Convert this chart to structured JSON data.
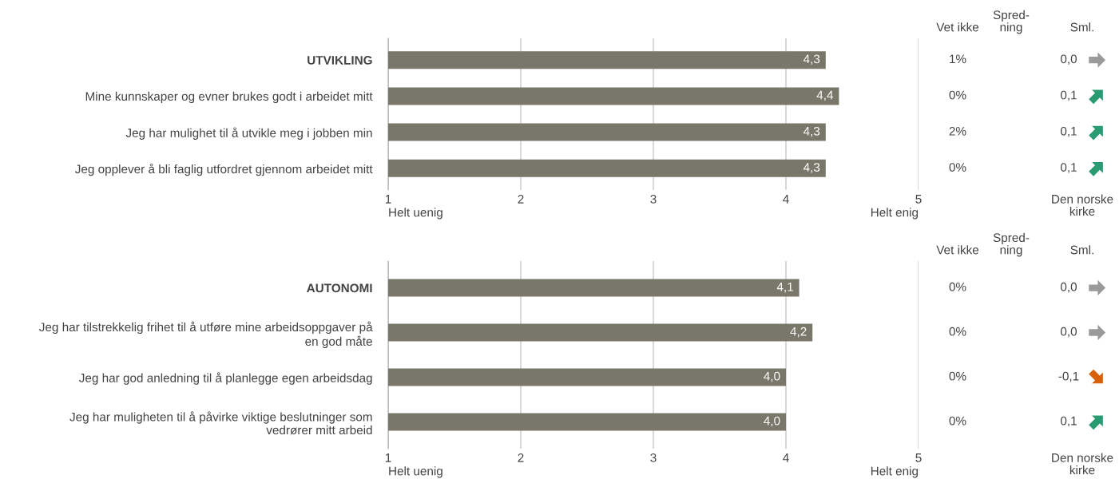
{
  "chart_data": [
    {
      "type": "bar",
      "orientation": "horizontal",
      "categories": [
        "UTVIKLING",
        "Mine kunnskaper og evner brukes godt i arbeidet mitt",
        "Jeg har mulighet til å utvikle meg i jobben min",
        "Jeg opplever å bli faglig utfordret gjennom arbeidet mitt"
      ],
      "values": [
        4.3,
        4.4,
        4.3,
        4.3
      ],
      "value_labels": [
        "4,3",
        "4,4",
        "4,3",
        "4,3"
      ],
      "color": "#78776a",
      "xlim": [
        1,
        5
      ],
      "xticks": [
        1,
        2,
        3,
        4,
        5
      ],
      "grid": "x",
      "annotations": [
        "Vet ikke",
        "Spred-\nning",
        "Sml.",
        "1%",
        "0,0",
        "0%",
        "0,1",
        "2%",
        "0,1",
        "0%",
        "0,1",
        "Helt uenig",
        "Helt enig",
        "Den norske\nkirke"
      ]
    },
    {
      "type": "bar",
      "orientation": "horizontal",
      "categories": [
        "AUTONOMI",
        "Jeg har tilstrekkelig frihet til å utføre mine arbeidsoppgaver på\nen god måte",
        "Jeg har god anledning til å planlegge egen arbeidsdag",
        "Jeg har muligheten til å påvirke viktige beslutninger som\nvedrører mitt arbeid"
      ],
      "values": [
        4.1,
        4.2,
        4.0,
        4.0
      ],
      "value_labels": [
        "4,1",
        "4,2",
        "4,0",
        "4,0"
      ],
      "color": "#78776a",
      "xlim": [
        1,
        5
      ],
      "xticks": [
        1,
        2,
        3,
        4,
        5
      ],
      "grid": "x",
      "annotations": [
        "Vet ikke",
        "Spred-\nning",
        "Sml.",
        "0%",
        "0,0",
        "0%",
        "0,0",
        "0%",
        "-0,1",
        "0%",
        "0,1",
        "Helt uenig",
        "Helt enig",
        "Den norske\nkirke"
      ]
    }
  ]
}
